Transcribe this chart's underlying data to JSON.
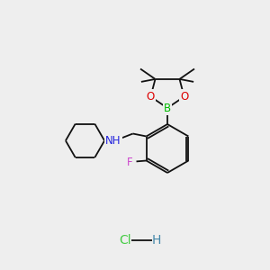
{
  "bg_color": "#eeeeee",
  "fig_size": [
    3.0,
    3.0
  ],
  "dpi": 100,
  "atom_colors": {
    "B": "#00bb00",
    "O": "#dd0000",
    "N": "#2222dd",
    "F": "#cc44cc",
    "C": "#111111",
    "H": "#4488aa",
    "Cl": "#44cc44"
  },
  "bond_color": "#111111",
  "bond_lw": 1.3,
  "font_size_atom": 8.5,
  "font_size_hcl": 10
}
